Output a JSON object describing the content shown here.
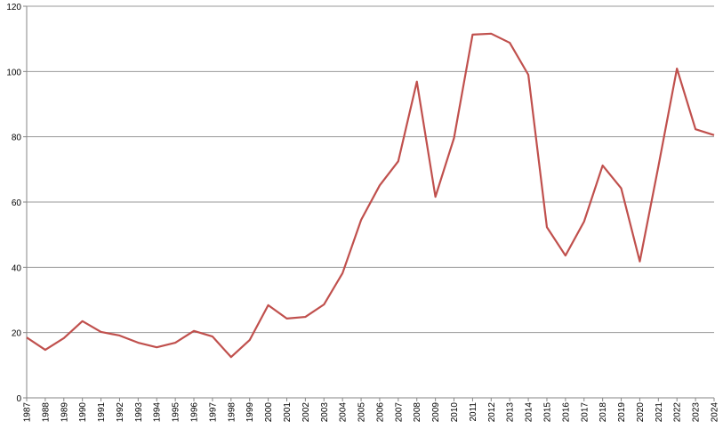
{
  "chart_data": {
    "type": "line",
    "categories": [
      "1987",
      "1988",
      "1989",
      "1990",
      "1991",
      "1992",
      "1993",
      "1994",
      "1995",
      "1996",
      "1997",
      "1998",
      "1999",
      "2000",
      "2001",
      "2002",
      "2003",
      "2004",
      "2005",
      "2006",
      "2007",
      "2008",
      "2009",
      "2010",
      "2011",
      "2012",
      "2013",
      "2014",
      "2015",
      "2016",
      "2017",
      "2018",
      "2019",
      "2020",
      "2021",
      "2022",
      "2023",
      "2024"
    ],
    "values": [
      18.5,
      14.7,
      18.3,
      23.5,
      20.2,
      19.1,
      16.9,
      15.5,
      16.9,
      20.5,
      18.8,
      12.5,
      17.7,
      28.4,
      24.3,
      24.8,
      28.6,
      38.2,
      54.5,
      65.1,
      72.5,
      96.9,
      61.6,
      79.6,
      111.3,
      111.6,
      108.8,
      99.0,
      52.3,
      43.6,
      54.0,
      71.2,
      64.2,
      41.8,
      70.9,
      100.9,
      82.3,
      80.5
    ],
    "color": "#c0504d",
    "ylim": [
      0,
      120
    ],
    "yticks": [
      0,
      20,
      40,
      60,
      80,
      100,
      120
    ],
    "grid": true
  }
}
